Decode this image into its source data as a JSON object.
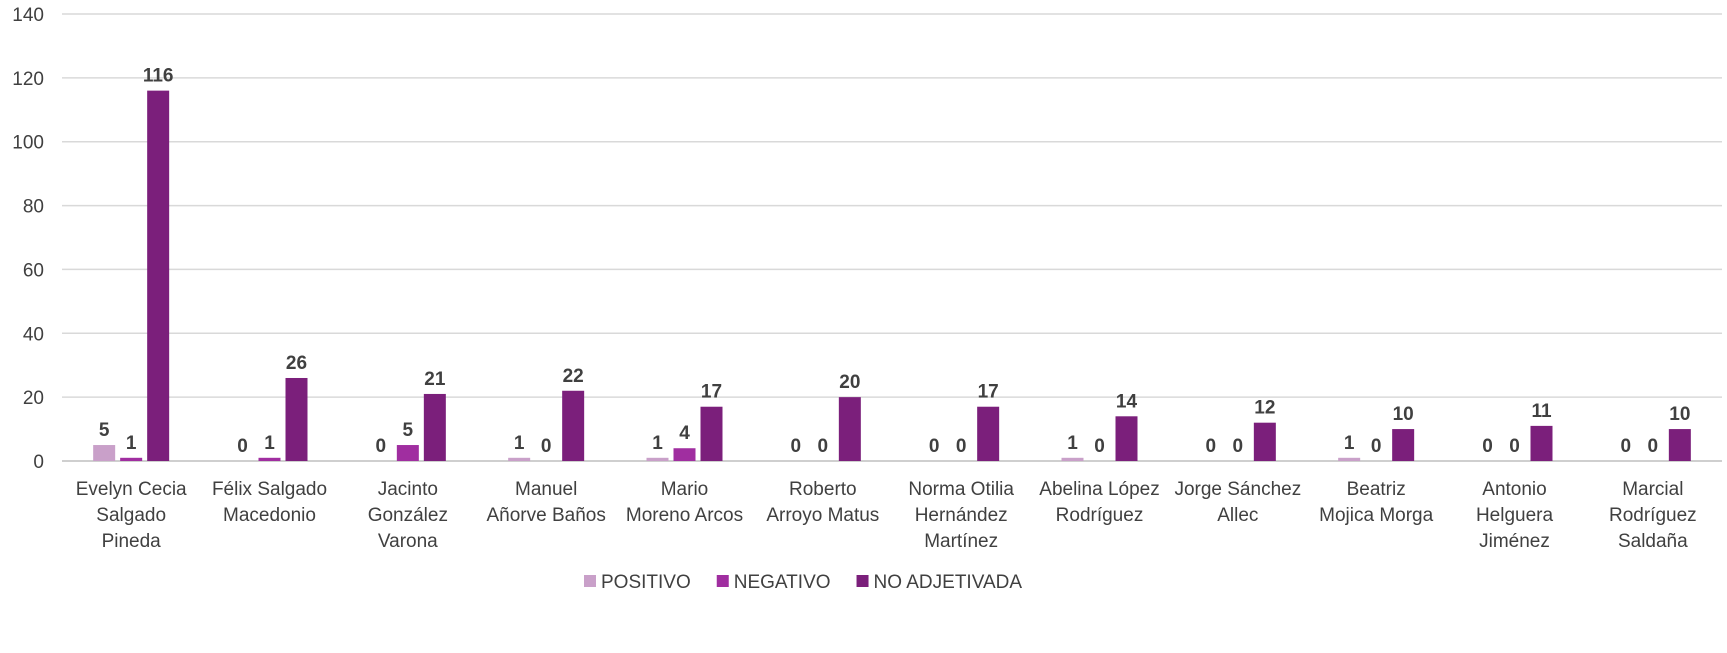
{
  "chart_data": {
    "type": "bar",
    "title": "",
    "xlabel": "",
    "ylabel": "",
    "ylim": [
      0,
      140
    ],
    "yticks": [
      0,
      20,
      40,
      60,
      80,
      100,
      120,
      140
    ],
    "grid": true,
    "legend_position": "bottom",
    "categories": [
      [
        "Evelyn Cecia",
        "Salgado",
        "Pineda"
      ],
      [
        "Félix Salgado",
        "Macedonio"
      ],
      [
        "Jacinto",
        "González",
        "Varona"
      ],
      [
        "Manuel",
        "Añorve Baños"
      ],
      [
        "Mario",
        "Moreno Arcos"
      ],
      [
        "Roberto",
        "Arroyo Matus"
      ],
      [
        "Norma Otilia",
        "Hernández",
        "Martínez"
      ],
      [
        "Abelina López",
        "Rodríguez"
      ],
      [
        "Jorge Sánchez",
        "Allec"
      ],
      [
        "Beatriz",
        "Mojica Morga"
      ],
      [
        "Antonio",
        "Helguera",
        "Jiménez"
      ],
      [
        "Marcial",
        "Rodríguez",
        "Saldaña"
      ]
    ],
    "series": [
      {
        "name": "POSITIVO",
        "color": "#c9a0c9",
        "values": [
          5,
          0,
          0,
          1,
          1,
          0,
          0,
          1,
          0,
          1,
          0,
          0
        ]
      },
      {
        "name": "NEGATIVO",
        "color": "#a02ea0",
        "values": [
          1,
          1,
          5,
          0,
          4,
          0,
          0,
          0,
          0,
          0,
          0,
          0
        ]
      },
      {
        "name": "NO ADJETIVADA",
        "color": "#7b1f7b",
        "values": [
          116,
          26,
          21,
          22,
          17,
          20,
          17,
          14,
          12,
          10,
          11,
          10
        ]
      }
    ]
  }
}
